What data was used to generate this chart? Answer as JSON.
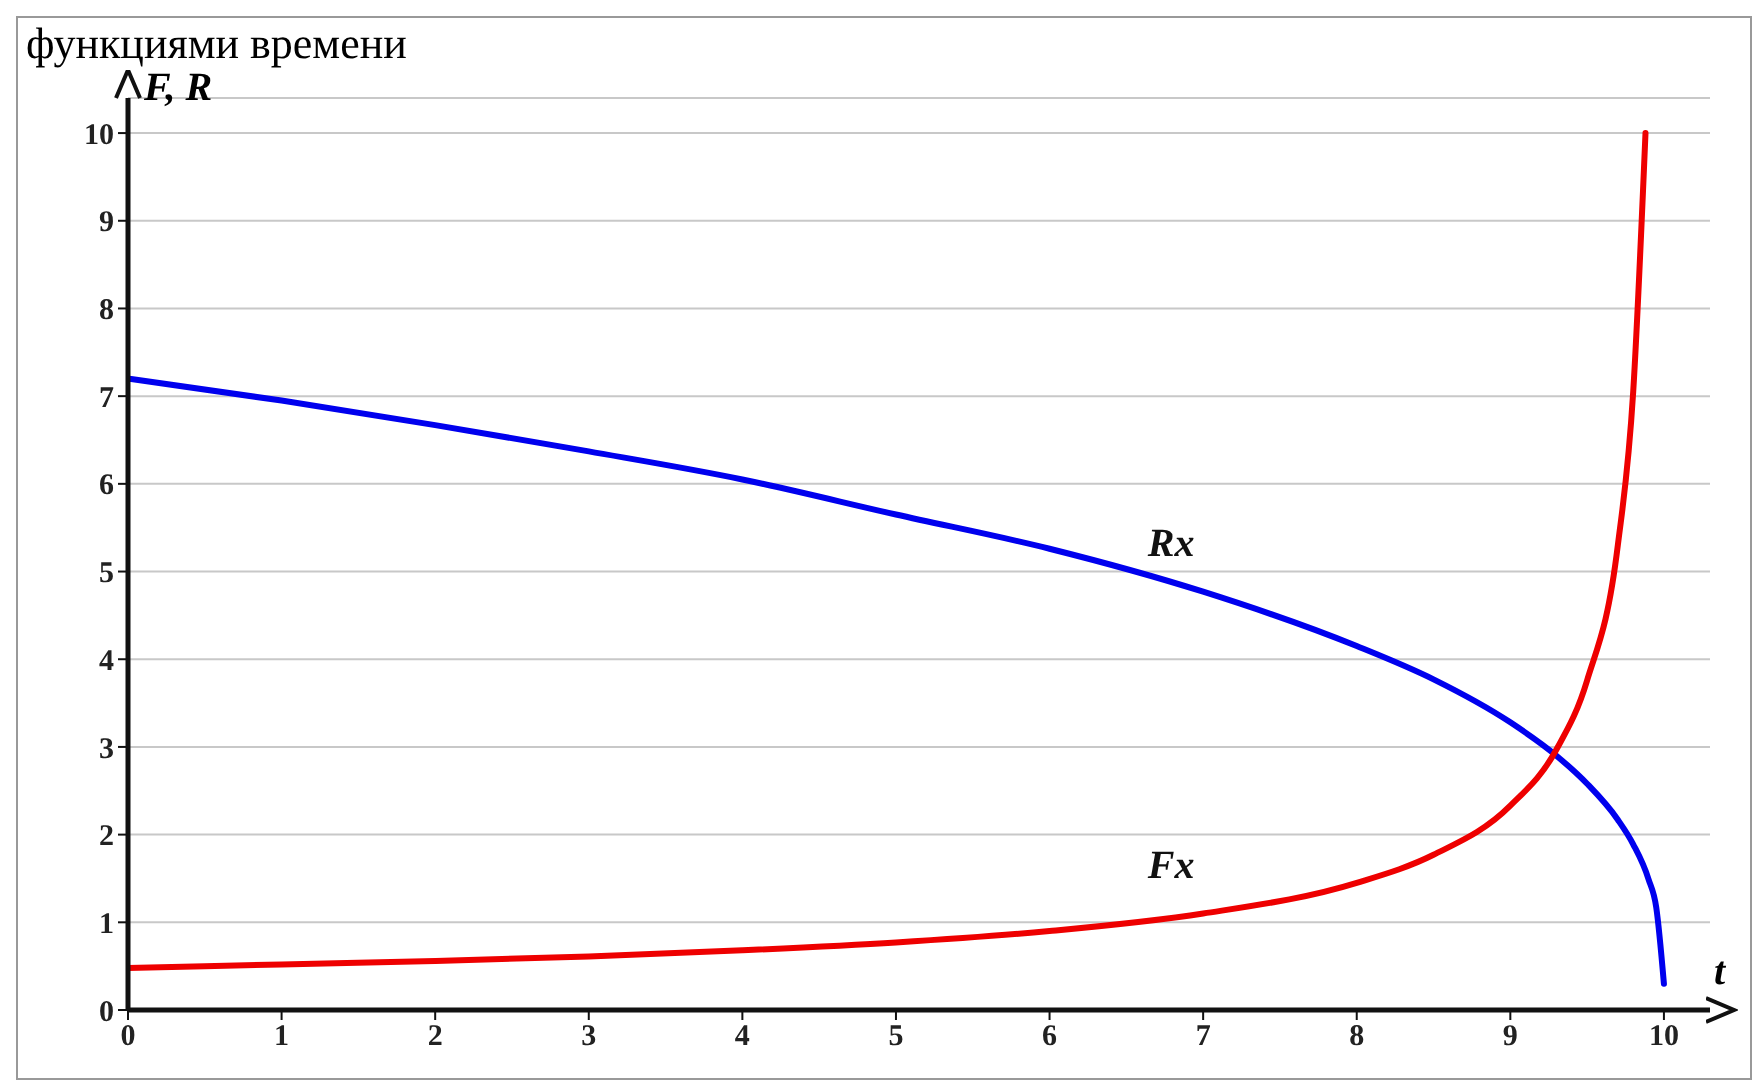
{
  "chart_data": {
    "type": "line",
    "title": "функциями времени",
    "xlabel": "t",
    "ylabel": "F, R",
    "xlim": [
      0,
      10.3
    ],
    "xticks": [
      0,
      1,
      2,
      3,
      4,
      5,
      6,
      7,
      8,
      9,
      10
    ],
    "ylim": [
      0,
      10.4
    ],
    "yticks": [
      0,
      1,
      2,
      3,
      4,
      5,
      6,
      7,
      8,
      9,
      10
    ],
    "grid": "y",
    "marker": "none",
    "line_style": "solid",
    "series": [
      {
        "name": "Rx",
        "color": "#0000ee",
        "x": [
          0,
          1,
          2,
          3,
          4,
          5,
          6,
          7,
          8,
          8.5,
          9,
          9.3,
          9.5,
          9.7,
          9.8,
          9.9,
          9.95,
          10
        ],
        "values": [
          7.2,
          6.95,
          6.67,
          6.37,
          6.05,
          5.65,
          5.26,
          4.77,
          4.15,
          3.77,
          3.28,
          2.9,
          2.58,
          2.17,
          1.89,
          1.49,
          1.17,
          0.3
        ]
      },
      {
        "name": "Fx",
        "color": "#ee0000",
        "x": [
          0,
          1,
          2,
          3,
          4,
          5,
          6,
          7,
          8,
          8.5,
          9,
          9.3,
          9.5,
          9.7,
          9.8,
          9.88
        ],
        "values": [
          0.48,
          0.52,
          0.56,
          0.61,
          0.68,
          0.77,
          0.9,
          1.1,
          1.45,
          1.77,
          2.33,
          2.97,
          3.76,
          5.3,
          7.05,
          10
        ]
      }
    ]
  }
}
